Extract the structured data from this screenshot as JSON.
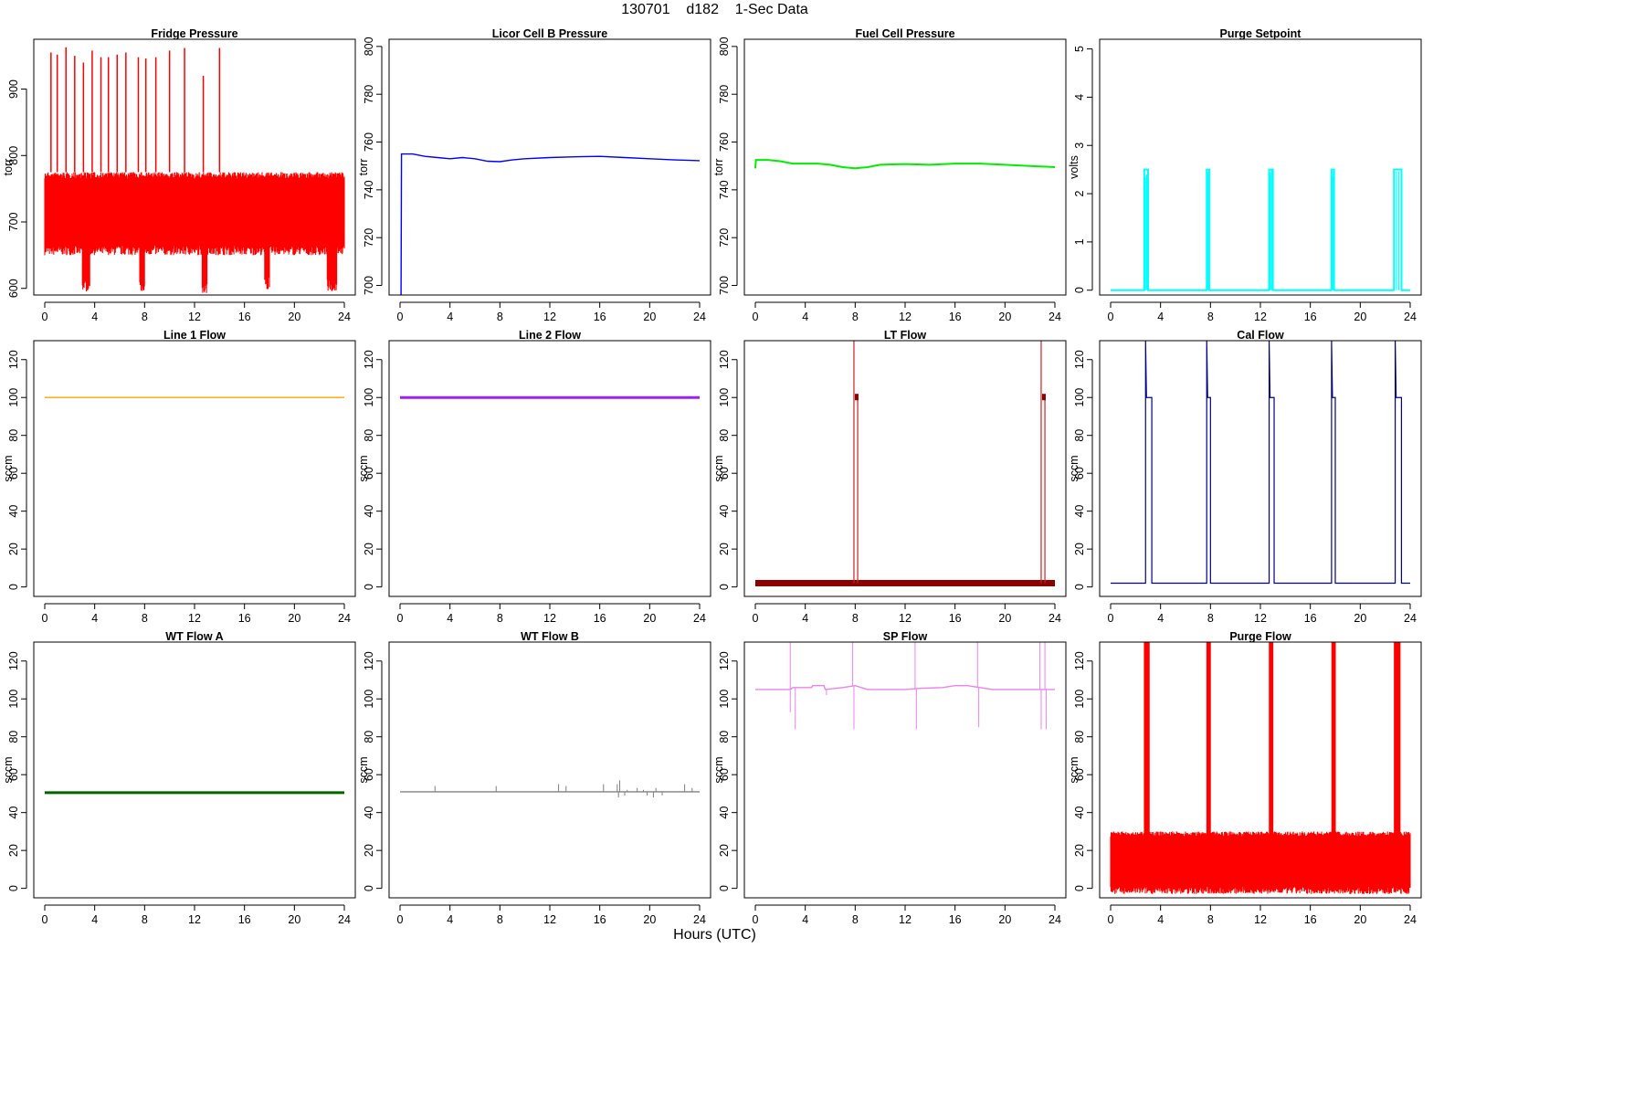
{
  "page": {
    "title": "130701    d182    1-Sec Data",
    "xlabel": "Hours (UTC)"
  },
  "chart_data": [
    {
      "type": "line",
      "title": "Fridge Pressure",
      "ylabel": "torr",
      "xlabel": "",
      "color": "#ff0000",
      "xlim": [
        0,
        24
      ],
      "ylim": [
        590,
        975
      ],
      "xticks": [
        0,
        4,
        8,
        12,
        16,
        20,
        24
      ],
      "yticks": [
        600,
        700,
        800,
        900
      ],
      "series": [
        {
          "kind": "noise_band",
          "base": [
            [
              0,
              730
            ],
            [
              24,
              730
            ]
          ],
          "low": 650,
          "high": 775,
          "dips": [
            [
              3.0,
              3.6,
              595
            ],
            [
              7.6,
              8.0,
              592
            ],
            [
              12.6,
              13.0,
              593
            ],
            [
              17.6,
              18.0,
              598
            ],
            [
              22.6,
              23.4,
              595
            ]
          ],
          "spikes": [
            [
              0.5,
              955
            ],
            [
              1.0,
              952
            ],
            [
              1.7,
              963
            ],
            [
              2.4,
              950
            ],
            [
              3.1,
              940
            ],
            [
              3.8,
              958
            ],
            [
              4.5,
              948
            ],
            [
              5.1,
              948
            ],
            [
              5.8,
              952
            ],
            [
              6.5,
              955
            ],
            [
              7.5,
              948
            ],
            [
              8.1,
              946
            ],
            [
              8.9,
              948
            ],
            [
              10.0,
              958
            ],
            [
              11.2,
              962
            ],
            [
              12.7,
              920
            ],
            [
              14.0,
              962
            ]
          ]
        }
      ]
    },
    {
      "type": "line",
      "title": "Licor Cell B Pressure",
      "ylabel": "torr",
      "xlabel": "",
      "color": "#0000ff",
      "xlim": [
        0,
        24
      ],
      "ylim": [
        696,
        803
      ],
      "xticks": [
        0,
        4,
        8,
        12,
        16,
        20,
        24
      ],
      "yticks": [
        700,
        720,
        740,
        760,
        780,
        800
      ],
      "series": [
        {
          "kind": "line",
          "points": [
            [
              0,
              696
            ],
            [
              0.08,
              696
            ],
            [
              0.12,
              755
            ],
            [
              1,
              755
            ],
            [
              2,
              754
            ],
            [
              3,
              753.5
            ],
            [
              4,
              753
            ],
            [
              5,
              753.5
            ],
            [
              6,
              753
            ],
            [
              7,
              752
            ],
            [
              8,
              751.8
            ],
            [
              9,
              752.5
            ],
            [
              10,
              753
            ],
            [
              12,
              753.5
            ],
            [
              14,
              753.8
            ],
            [
              16,
              754
            ],
            [
              18,
              753.5
            ],
            [
              20,
              753
            ],
            [
              22,
              752.5
            ],
            [
              24,
              752.2
            ]
          ]
        }
      ]
    },
    {
      "type": "line",
      "title": "Fuel Cell Pressure",
      "ylabel": "torr",
      "xlabel": "",
      "color": "#00ee00",
      "xlim": [
        0,
        24
      ],
      "ylim": [
        696,
        803
      ],
      "xticks": [
        0,
        4,
        8,
        12,
        16,
        20,
        24
      ],
      "yticks": [
        700,
        720,
        740,
        760,
        780,
        800
      ],
      "series": [
        {
          "kind": "line",
          "points": [
            [
              0,
              749
            ],
            [
              0.05,
              752.5
            ],
            [
              1,
              752.5
            ],
            [
              2,
              752
            ],
            [
              3,
              751
            ],
            [
              4,
              751
            ],
            [
              5,
              751
            ],
            [
              6,
              750.5
            ],
            [
              7,
              749.5
            ],
            [
              8,
              749
            ],
            [
              9,
              749.5
            ],
            [
              10,
              750.5
            ],
            [
              12,
              750.8
            ],
            [
              14,
              750.5
            ],
            [
              16,
              751
            ],
            [
              18,
              751
            ],
            [
              20,
              750.5
            ],
            [
              22,
              750
            ],
            [
              24,
              749.5
            ]
          ]
        }
      ]
    },
    {
      "type": "line",
      "title": "Purge Setpoint",
      "ylabel": "volts",
      "xlabel": "",
      "color": "#00ffff",
      "xlim": [
        0,
        24
      ],
      "ylim": [
        -0.1,
        5.2
      ],
      "xticks": [
        0,
        4,
        8,
        12,
        16,
        20,
        24
      ],
      "yticks": [
        0,
        1,
        2,
        3,
        4,
        5
      ],
      "series": [
        {
          "kind": "pulses",
          "baseline": 0,
          "height": 2.5,
          "pulses": [
            [
              2.7,
              3.0
            ],
            [
              7.7,
              7.9
            ],
            [
              12.7,
              13.0
            ],
            [
              17.7,
              17.9
            ],
            [
              22.7,
              23.3
            ]
          ]
        }
      ]
    },
    {
      "type": "line",
      "title": "Line 1 Flow",
      "ylabel": "sccm",
      "xlabel": "",
      "color": "#ffa500",
      "xlim": [
        0,
        24
      ],
      "ylim": [
        -5,
        130
      ],
      "xticks": [
        0,
        4,
        8,
        12,
        16,
        20,
        24
      ],
      "yticks": [
        0,
        20,
        40,
        60,
        80,
        100,
        120
      ],
      "series": [
        {
          "kind": "line",
          "points": [
            [
              0,
              100
            ],
            [
              24,
              100
            ]
          ]
        }
      ]
    },
    {
      "type": "line",
      "title": "Line 2 Flow",
      "ylabel": "sccm",
      "xlabel": "",
      "color": "#a020f0",
      "xlim": [
        0,
        24
      ],
      "ylim": [
        -5,
        130
      ],
      "xticks": [
        0,
        4,
        8,
        12,
        16,
        20,
        24
      ],
      "yticks": [
        0,
        20,
        40,
        60,
        80,
        100,
        120
      ],
      "series": [
        {
          "kind": "line",
          "points": [
            [
              0,
              100
            ],
            [
              24,
              100
            ]
          ]
        }
      ]
    },
    {
      "type": "line",
      "title": "LT Flow",
      "ylabel": "sccm",
      "xlabel": "",
      "color": "#8b0000",
      "xlim": [
        0,
        24
      ],
      "ylim": [
        -5,
        130
      ],
      "xticks": [
        0,
        4,
        8,
        12,
        16,
        20,
        24
      ],
      "yticks": [
        0,
        20,
        40,
        60,
        80,
        100,
        120
      ],
      "series": [
        {
          "kind": "pulses",
          "baseline": 2,
          "height": 100,
          "spike": 130,
          "pulses": [
            [
              7.9,
              8.2
            ],
            [
              22.9,
              23.2
            ]
          ]
        }
      ]
    },
    {
      "type": "line",
      "title": "Cal Flow",
      "ylabel": "sccm",
      "xlabel": "",
      "color": "#00008b",
      "xlim": [
        0,
        24
      ],
      "ylim": [
        -5,
        130
      ],
      "xticks": [
        0,
        4,
        8,
        12,
        16,
        20,
        24
      ],
      "yticks": [
        0,
        20,
        40,
        60,
        80,
        100,
        120
      ],
      "series": [
        {
          "kind": "pulses",
          "baseline": 2,
          "height": 100,
          "spike": 130,
          "pulses": [
            [
              2.8,
              3.3
            ],
            [
              7.7,
              8.0
            ],
            [
              12.7,
              13.1
            ],
            [
              17.7,
              18.0
            ],
            [
              22.8,
              23.3
            ]
          ]
        }
      ]
    },
    {
      "type": "line",
      "title": "WT Flow A",
      "ylabel": "sccm",
      "xlabel": "",
      "color": "#006400",
      "xlim": [
        0,
        24
      ],
      "ylim": [
        -5,
        130
      ],
      "xticks": [
        0,
        4,
        8,
        12,
        16,
        20,
        24
      ],
      "yticks": [
        0,
        20,
        40,
        60,
        80,
        100,
        120
      ],
      "series": [
        {
          "kind": "line",
          "points": [
            [
              0,
              50.5
            ],
            [
              24,
              50.5
            ]
          ]
        }
      ]
    },
    {
      "type": "line",
      "title": "WT Flow B",
      "ylabel": "sccm",
      "xlabel": "",
      "color": "#808080",
      "xlim": [
        0,
        24
      ],
      "ylim": [
        -5,
        130
      ],
      "xticks": [
        0,
        4,
        8,
        12,
        16,
        20,
        24
      ],
      "yticks": [
        0,
        20,
        40,
        60,
        80,
        100,
        120
      ],
      "series": [
        {
          "kind": "line",
          "points": [
            [
              0,
              51
            ],
            [
              24,
              51
            ]
          ],
          "spikes": [
            [
              2.8,
              54
            ],
            [
              7.7,
              54
            ],
            [
              12.7,
              55
            ],
            [
              13.3,
              54
            ],
            [
              16.3,
              55
            ],
            [
              17.4,
              55
            ],
            [
              17.6,
              57
            ],
            [
              18.2,
              52
            ],
            [
              19.0,
              53
            ],
            [
              19.5,
              52
            ],
            [
              20.5,
              53
            ],
            [
              22.8,
              55
            ],
            [
              23.4,
              53
            ]
          ],
          "dips": [
            [
              17.5,
              48
            ],
            [
              18.0,
              49
            ],
            [
              19.8,
              49
            ],
            [
              20.3,
              48
            ],
            [
              21.0,
              49
            ]
          ]
        }
      ]
    },
    {
      "type": "line",
      "title": "SP Flow",
      "ylabel": "sccm",
      "xlabel": "",
      "color": "#ee82ee",
      "xlim": [
        0,
        24
      ],
      "ylim": [
        -5,
        130
      ],
      "xticks": [
        0,
        4,
        8,
        12,
        16,
        20,
        24
      ],
      "yticks": [
        0,
        20,
        40,
        60,
        80,
        100,
        120
      ],
      "series": [
        {
          "kind": "line",
          "points": [
            [
              0,
              105
            ],
            [
              2.8,
              105
            ],
            [
              3.0,
              106
            ],
            [
              4.5,
              106
            ],
            [
              4.6,
              107
            ],
            [
              5.5,
              107
            ],
            [
              5.6,
              105
            ],
            [
              7,
              106
            ],
            [
              8,
              107
            ],
            [
              9,
              105
            ],
            [
              12,
              105
            ],
            [
              13,
              105.5
            ],
            [
              15,
              106
            ],
            [
              16,
              107
            ],
            [
              17,
              107
            ],
            [
              18,
              106
            ],
            [
              19,
              105
            ],
            [
              24,
              105
            ]
          ],
          "spikes": [
            [
              2.8,
              130
            ],
            [
              7.8,
              130
            ],
            [
              12.8,
              130
            ],
            [
              17.8,
              130
            ],
            [
              22.8,
              130
            ],
            [
              23.2,
              130
            ]
          ],
          "dips": [
            [
              2.8,
              93
            ],
            [
              3.2,
              84
            ],
            [
              5.7,
              102
            ],
            [
              7.9,
              84
            ],
            [
              12.9,
              84
            ],
            [
              17.9,
              85
            ],
            [
              22.9,
              84
            ],
            [
              23.3,
              84
            ]
          ]
        }
      ]
    },
    {
      "type": "line",
      "title": "Purge Flow",
      "ylabel": "sccm",
      "xlabel": "",
      "color": "#ff0000",
      "xlim": [
        0,
        24
      ],
      "ylim": [
        -5,
        130
      ],
      "xticks": [
        0,
        4,
        8,
        12,
        16,
        20,
        24
      ],
      "yticks": [
        0,
        20,
        40,
        60,
        80,
        100,
        120
      ],
      "series": [
        {
          "kind": "noise_band",
          "base": [
            [
              0,
              15
            ],
            [
              24,
              15
            ]
          ],
          "low": -3,
          "high": 30,
          "bursts": [
            [
              2.7,
              3.1
            ],
            [
              7.7,
              8.0
            ],
            [
              12.7,
              13.0
            ],
            [
              17.7,
              18.0
            ],
            [
              22.7,
              23.2
            ]
          ],
          "burst_top": 130
        }
      ]
    }
  ]
}
